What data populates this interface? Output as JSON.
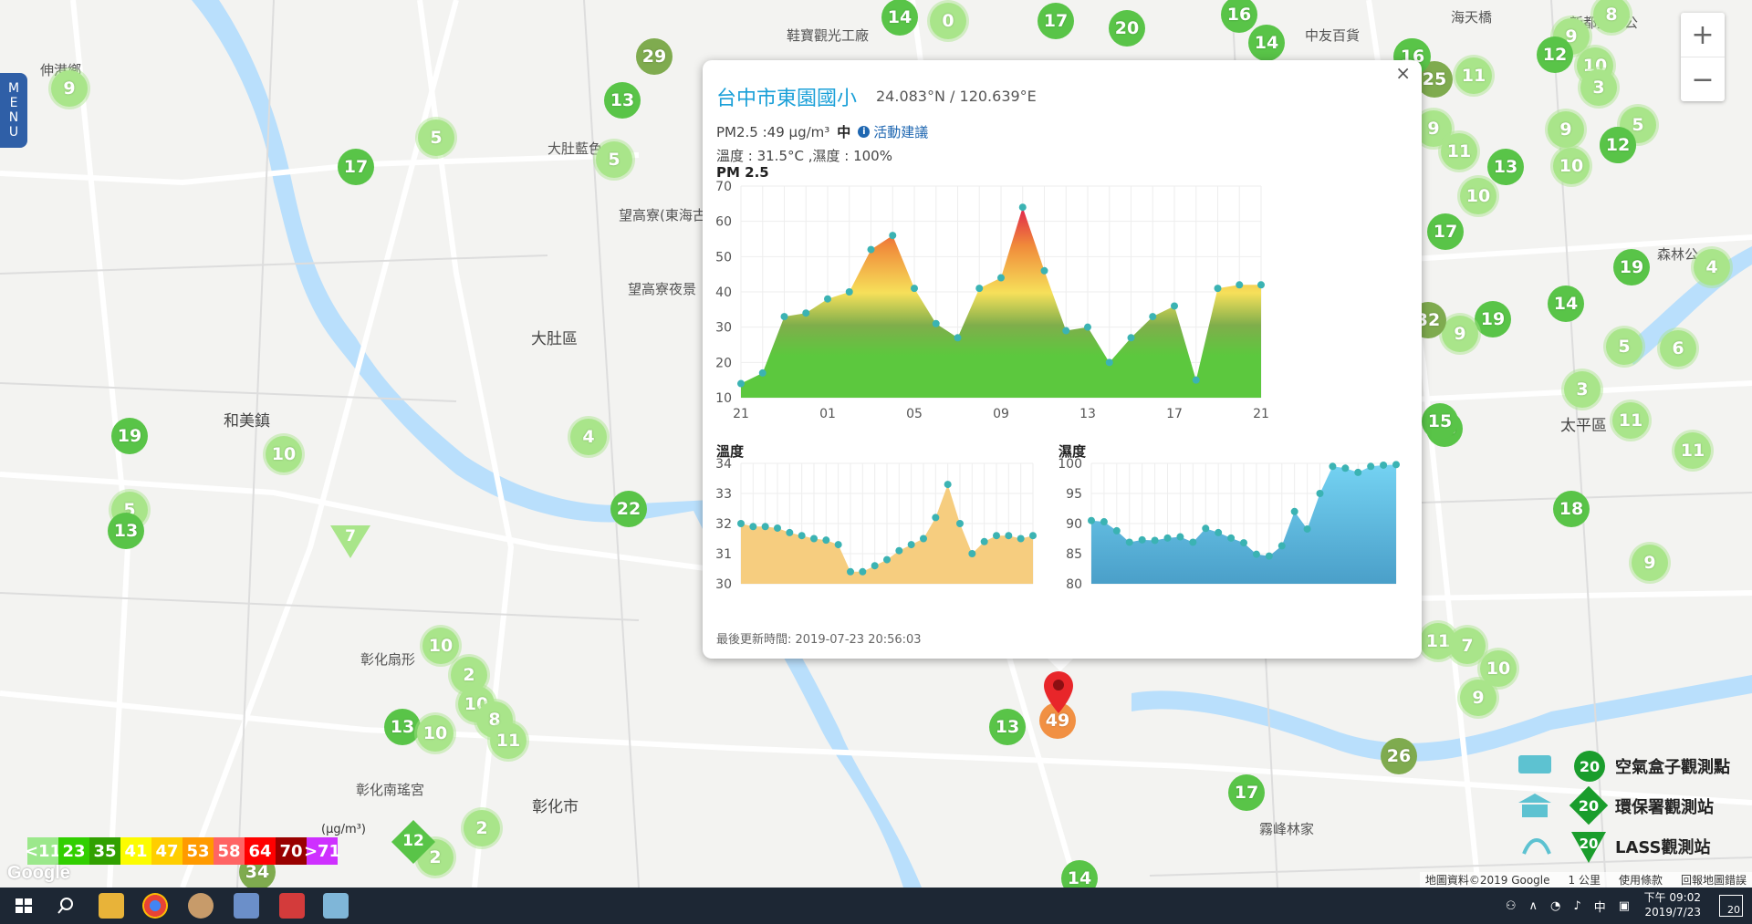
{
  "map": {
    "place_labels": [
      "大肚區",
      "和美鎮",
      "彰化市",
      "太平區",
      "大肚藍色",
      "望高寮(東海古堡)",
      "望高寮夜景",
      "伸港鄉",
      "鞋寶觀光工廠",
      "彰化扇形",
      "彰化南瑤宮",
      "霧峰林家",
      "海天橋",
      "新都生態公",
      "中友百貨",
      "森林公"
    ],
    "markers": [
      {
        "v": "29",
        "t": "dark"
      },
      {
        "v": "13",
        "t": "mid"
      },
      {
        "v": "5",
        "t": "light"
      },
      {
        "v": "5",
        "t": "light"
      },
      {
        "v": "17",
        "t": "mid"
      },
      {
        "v": "9",
        "t": "light"
      },
      {
        "v": "14",
        "t": "mid"
      },
      {
        "v": "0",
        "t": "light"
      },
      {
        "v": "17",
        "t": "mid"
      },
      {
        "v": "20",
        "t": "mid"
      },
      {
        "v": "16",
        "t": "mid"
      },
      {
        "v": "14",
        "t": "mid"
      },
      {
        "v": "15",
        "t": "mid"
      },
      {
        "v": "19",
        "t": "mid"
      },
      {
        "v": "10",
        "t": "light"
      },
      {
        "v": "5",
        "t": "light"
      },
      {
        "v": "13",
        "t": "mid"
      },
      {
        "v": "4",
        "t": "light"
      },
      {
        "v": "22",
        "t": "mid"
      },
      {
        "v": "10",
        "t": "light"
      },
      {
        "v": "2",
        "t": "light"
      },
      {
        "v": "10",
        "t": "light"
      },
      {
        "v": "8",
        "t": "light"
      },
      {
        "v": "11",
        "t": "light"
      },
      {
        "v": "13",
        "t": "mid"
      },
      {
        "v": "10",
        "t": "light"
      },
      {
        "v": "2",
        "t": "light"
      },
      {
        "v": "34",
        "t": "dark"
      },
      {
        "v": "2",
        "t": "light"
      },
      {
        "v": "13",
        "t": "mid"
      },
      {
        "v": "17",
        "t": "mid"
      },
      {
        "v": "26",
        "t": "dark"
      },
      {
        "v": "14",
        "t": "mid"
      },
      {
        "v": "11",
        "t": "light"
      },
      {
        "v": "7",
        "t": "light"
      },
      {
        "v": "10",
        "t": "light"
      },
      {
        "v": "9",
        "t": "light"
      },
      {
        "v": "25",
        "t": "dark"
      },
      {
        "v": "11",
        "t": "light"
      },
      {
        "v": "16",
        "t": "mid"
      },
      {
        "v": "9",
        "t": "light"
      },
      {
        "v": "11",
        "t": "light"
      },
      {
        "v": "13",
        "t": "mid"
      },
      {
        "v": "10",
        "t": "light"
      },
      {
        "v": "17",
        "t": "mid"
      },
      {
        "v": "12",
        "t": "mid"
      },
      {
        "v": "10",
        "t": "light"
      },
      {
        "v": "9",
        "t": "light"
      },
      {
        "v": "5",
        "t": "light"
      },
      {
        "v": "12",
        "t": "mid"
      },
      {
        "v": "19",
        "t": "mid"
      },
      {
        "v": "4",
        "t": "light"
      },
      {
        "v": "14",
        "t": "mid"
      },
      {
        "v": "19",
        "t": "mid"
      },
      {
        "v": "9",
        "t": "light"
      },
      {
        "v": "32",
        "t": "dark"
      },
      {
        "v": "6",
        "t": "light"
      },
      {
        "v": "5",
        "t": "light"
      },
      {
        "v": "3",
        "t": "light"
      },
      {
        "v": "11",
        "t": "light"
      },
      {
        "v": "11",
        "t": "light"
      },
      {
        "v": "18",
        "t": "mid"
      },
      {
        "v": "9",
        "t": "light"
      },
      {
        "v": "15",
        "t": "mid"
      },
      {
        "v": "16",
        "t": "mid"
      },
      {
        "v": "8",
        "t": "light"
      },
      {
        "v": "10",
        "t": "light"
      },
      {
        "v": "3",
        "t": "light"
      },
      {
        "v": "9",
        "t": "light"
      },
      {
        "v": "12",
        "t": "mid"
      }
    ],
    "lass_markers": [
      "7"
    ],
    "epa_markers": [
      "12"
    ],
    "selected_value": "49"
  },
  "menu_label": "MENU",
  "zoom": {
    "in": "+",
    "out": "−"
  },
  "scale": {
    "unit": "(μg/m³)",
    "items": [
      {
        "label": "<11",
        "color": "#9ce88c"
      },
      {
        "label": "23",
        "color": "#31cf00"
      },
      {
        "label": "35",
        "color": "#31a000"
      },
      {
        "label": "41",
        "color": "#fcfc00"
      },
      {
        "label": "47",
        "color": "#ffce00"
      },
      {
        "label": "53",
        "color": "#ff9a00"
      },
      {
        "label": "58",
        "color": "#ff6464"
      },
      {
        "label": "64",
        "color": "#ff0000"
      },
      {
        "label": "70",
        "color": "#990000"
      },
      {
        "label": ">71",
        "color": "#ce30ff"
      }
    ]
  },
  "legend_types": [
    {
      "label": "空氣盒子觀測點",
      "value": "20"
    },
    {
      "label": "環保署觀測站",
      "value": "20"
    },
    {
      "label": "LASS觀測站",
      "value": "20"
    }
  ],
  "attribution": {
    "data": "地圖資料©2019 Google",
    "scale": "1 公里",
    "terms": "使用條款",
    "report": "回報地圖錯誤"
  },
  "google": "Google",
  "popup": {
    "close": "×",
    "site_name": "台中市東園國小",
    "coords": "24.083°N / 120.639°E",
    "pm_text": "PM2.5 :49 μg/m³",
    "pm_level": "中",
    "advice": "活動建議",
    "weather": "溫度 : 31.5°C ,濕度 : 100%",
    "pm_title": "PM 2.5",
    "temp_title": "溫度",
    "hum_title": "濕度",
    "updated": "最後更新時間: 2019-07-23 20:56:03"
  },
  "chart_data": [
    {
      "type": "area",
      "title": "PM 2.5",
      "x_ticks": [
        "21",
        "01",
        "05",
        "09",
        "13",
        "17",
        "21"
      ],
      "ylim": [
        10,
        70
      ],
      "y_ticks": [
        10,
        20,
        30,
        40,
        50,
        60,
        70
      ],
      "values": [
        14,
        17,
        33,
        34,
        38,
        40,
        52,
        56,
        41,
        31,
        27,
        41,
        44,
        64,
        46,
        29,
        30,
        20,
        27,
        33,
        36,
        15,
        41,
        42,
        42
      ]
    },
    {
      "type": "area",
      "title": "溫度",
      "ylim": [
        30,
        34
      ],
      "y_ticks": [
        30,
        31,
        32,
        33,
        34
      ],
      "values": [
        32,
        31.9,
        31.9,
        31.85,
        31.7,
        31.6,
        31.5,
        31.45,
        31.3,
        30.4,
        30.4,
        30.6,
        30.8,
        31.1,
        31.3,
        31.5,
        32.2,
        33.3,
        32,
        31,
        31.4,
        31.6,
        31.6,
        31.5,
        31.6
      ]
    },
    {
      "type": "area",
      "title": "濕度",
      "ylim": [
        80,
        100
      ],
      "y_ticks": [
        80,
        85,
        90,
        95,
        100
      ],
      "values": [
        90.5,
        90.3,
        88.8,
        86.9,
        87.3,
        87.2,
        87.6,
        87.8,
        86.9,
        89.2,
        88.5,
        87.6,
        86.8,
        84.9,
        84.6,
        86.3,
        92,
        89.1,
        95,
        99.5,
        99.2,
        98.5,
        99.5,
        99.7,
        99.8
      ]
    }
  ],
  "taskbar": {
    "time": "下午 09:02",
    "date": "2019/7/23",
    "ime": "中",
    "notif": "20"
  }
}
